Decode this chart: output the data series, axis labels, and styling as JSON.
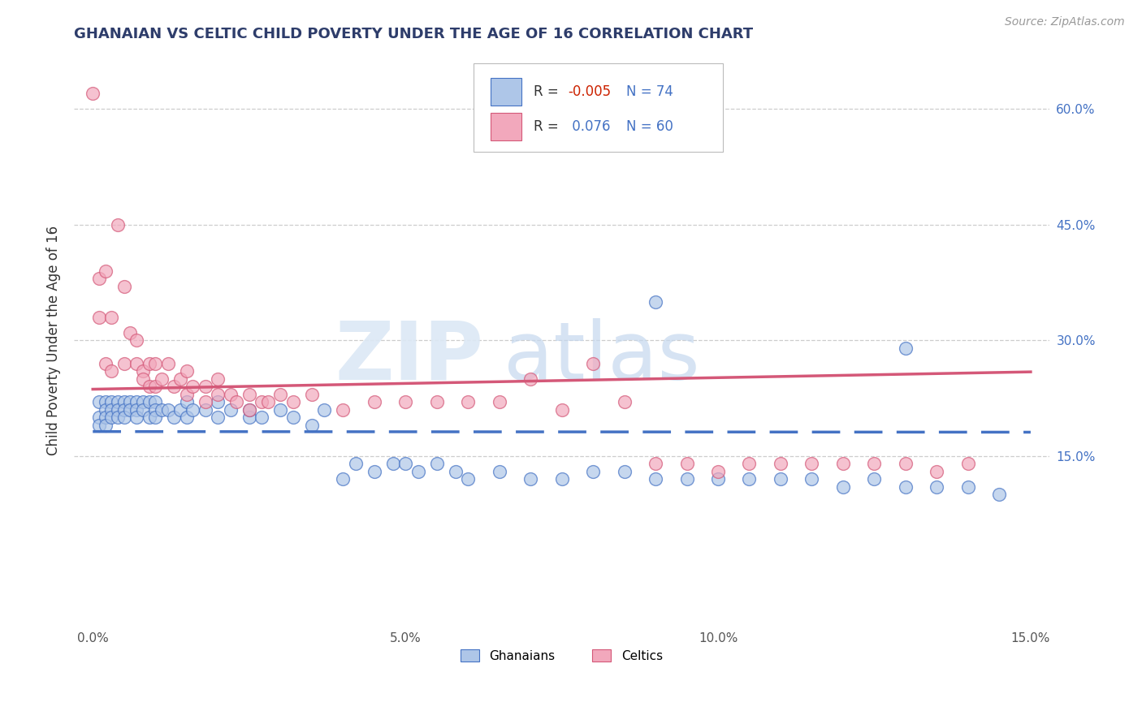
{
  "title": "GHANAIAN VS CELTIC CHILD POVERTY UNDER THE AGE OF 16 CORRELATION CHART",
  "source": "Source: ZipAtlas.com",
  "ylabel": "Child Poverty Under the Age of 16",
  "xlim": [
    -0.003,
    0.153
  ],
  "ylim": [
    -0.07,
    0.67
  ],
  "xticks": [
    0.0,
    0.05,
    0.1,
    0.15
  ],
  "xtick_labels": [
    "0.0%",
    "5.0%",
    "10.0%",
    "15.0%"
  ],
  "yticks": [
    0.15,
    0.3,
    0.45,
    0.6
  ],
  "ytick_labels": [
    "15.0%",
    "30.0%",
    "45.0%",
    "60.0%"
  ],
  "ghanaian_R": -0.005,
  "ghanaian_N": 74,
  "celtic_R": 0.076,
  "celtic_N": 60,
  "ghanaian_color": "#aec6e8",
  "celtic_color": "#f2a8bc",
  "ghanaian_line_color": "#4472c4",
  "celtic_line_color": "#d45878",
  "ghanaian_x": [
    0.001,
    0.001,
    0.001,
    0.002,
    0.002,
    0.002,
    0.002,
    0.003,
    0.003,
    0.003,
    0.004,
    0.004,
    0.004,
    0.005,
    0.005,
    0.005,
    0.006,
    0.006,
    0.007,
    0.007,
    0.007,
    0.008,
    0.008,
    0.009,
    0.009,
    0.01,
    0.01,
    0.01,
    0.011,
    0.012,
    0.013,
    0.014,
    0.015,
    0.015,
    0.016,
    0.018,
    0.02,
    0.02,
    0.022,
    0.025,
    0.025,
    0.027,
    0.03,
    0.032,
    0.035,
    0.037,
    0.04,
    0.042,
    0.045,
    0.048,
    0.05,
    0.052,
    0.055,
    0.058,
    0.06,
    0.065,
    0.07,
    0.075,
    0.08,
    0.085,
    0.09,
    0.095,
    0.1,
    0.105,
    0.11,
    0.115,
    0.12,
    0.125,
    0.13,
    0.135,
    0.14,
    0.145,
    0.09,
    0.13
  ],
  "ghanaian_y": [
    0.22,
    0.2,
    0.19,
    0.22,
    0.21,
    0.2,
    0.19,
    0.22,
    0.21,
    0.2,
    0.22,
    0.21,
    0.2,
    0.22,
    0.21,
    0.2,
    0.22,
    0.21,
    0.22,
    0.21,
    0.2,
    0.22,
    0.21,
    0.22,
    0.2,
    0.22,
    0.21,
    0.2,
    0.21,
    0.21,
    0.2,
    0.21,
    0.22,
    0.2,
    0.21,
    0.21,
    0.2,
    0.22,
    0.21,
    0.2,
    0.21,
    0.2,
    0.21,
    0.2,
    0.19,
    0.21,
    0.12,
    0.14,
    0.13,
    0.14,
    0.14,
    0.13,
    0.14,
    0.13,
    0.12,
    0.13,
    0.12,
    0.12,
    0.13,
    0.13,
    0.12,
    0.12,
    0.12,
    0.12,
    0.12,
    0.12,
    0.11,
    0.12,
    0.11,
    0.11,
    0.11,
    0.1,
    0.35,
    0.29
  ],
  "celtic_x": [
    0.0,
    0.001,
    0.001,
    0.002,
    0.002,
    0.003,
    0.003,
    0.004,
    0.005,
    0.005,
    0.006,
    0.007,
    0.007,
    0.008,
    0.008,
    0.009,
    0.009,
    0.01,
    0.01,
    0.011,
    0.012,
    0.013,
    0.014,
    0.015,
    0.015,
    0.016,
    0.018,
    0.018,
    0.02,
    0.02,
    0.022,
    0.023,
    0.025,
    0.025,
    0.027,
    0.028,
    0.03,
    0.032,
    0.035,
    0.04,
    0.045,
    0.05,
    0.055,
    0.06,
    0.065,
    0.07,
    0.075,
    0.08,
    0.085,
    0.09,
    0.095,
    0.1,
    0.105,
    0.11,
    0.115,
    0.12,
    0.125,
    0.13,
    0.135,
    0.14
  ],
  "celtic_y": [
    0.62,
    0.38,
    0.33,
    0.39,
    0.27,
    0.33,
    0.26,
    0.45,
    0.37,
    0.27,
    0.31,
    0.3,
    0.27,
    0.26,
    0.25,
    0.27,
    0.24,
    0.27,
    0.24,
    0.25,
    0.27,
    0.24,
    0.25,
    0.26,
    0.23,
    0.24,
    0.24,
    0.22,
    0.25,
    0.23,
    0.23,
    0.22,
    0.23,
    0.21,
    0.22,
    0.22,
    0.23,
    0.22,
    0.23,
    0.21,
    0.22,
    0.22,
    0.22,
    0.22,
    0.22,
    0.25,
    0.21,
    0.27,
    0.22,
    0.14,
    0.14,
    0.13,
    0.14,
    0.14,
    0.14,
    0.14,
    0.14,
    0.14,
    0.13,
    0.14
  ]
}
